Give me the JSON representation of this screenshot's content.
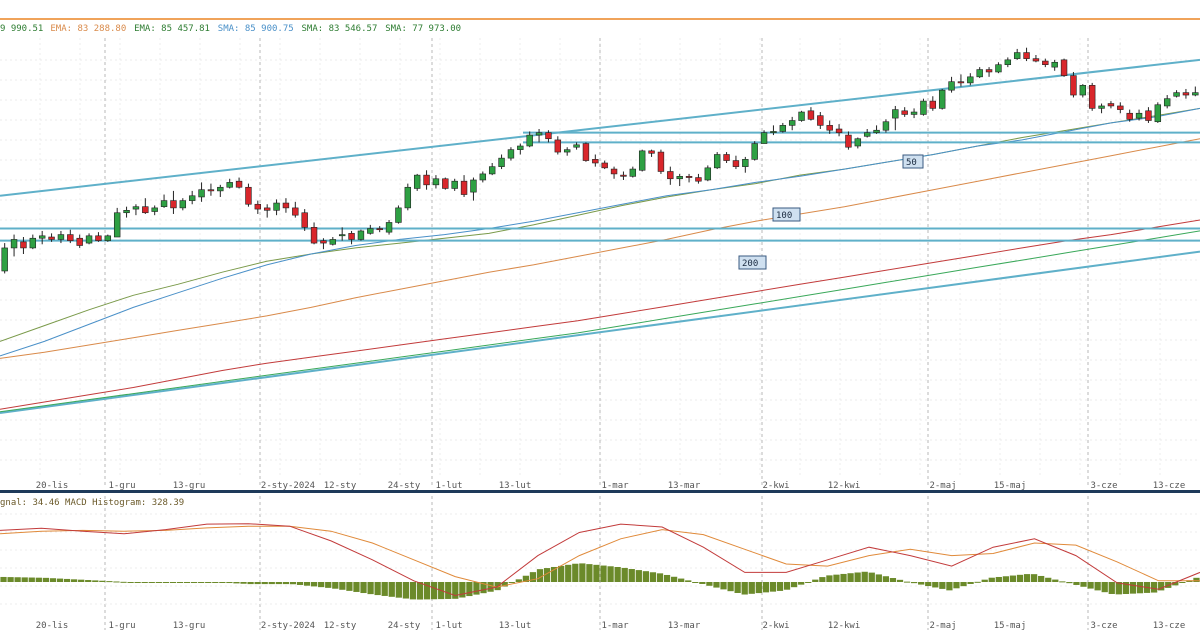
{
  "colors": {
    "up_candle": "#2ea043",
    "down_candle": "#d9262b",
    "channel": "#5fb0c9",
    "sma50": "#7a9a4a",
    "ema50": "#4a90c8",
    "sma100": "#d98a4a",
    "sma200": "#c23b3b",
    "ema200": "#3aa85a",
    "macd_line": "#c23b3b",
    "signal_line": "#e08a3a",
    "histogram": "#6b8a2a",
    "grid": "#d8d8d8",
    "top_accent": "#f0a35a"
  },
  "price_panel": {
    "legend": [
      {
        "text": "9 990.51",
        "color": "#2e7d32"
      },
      {
        "text": "EMA: 83 288.80",
        "color": "#d98a4a"
      },
      {
        "text": "EMA: 85 457.81",
        "color": "#2e7d32"
      },
      {
        "text": "SMA: 85 900.75",
        "color": "#4a90c8"
      },
      {
        "text": "SMA: 83 546.57",
        "color": "#2e7d32"
      },
      {
        "text": "SMA: 77 973.00",
        "color": "#2e7d32"
      }
    ],
    "ma_labels": [
      "50",
      "100",
      "200"
    ]
  },
  "x_axis": {
    "labels": [
      "20-lis",
      "1-gru",
      "13-gru",
      "2-sty-2024",
      "12-sty",
      "24-sty",
      "1-lut",
      "13-lut",
      "1-mar",
      "13-mar",
      "2-kwi",
      "12-kwi",
      "2-maj",
      "15-maj",
      "3-cze",
      "13-cze"
    ]
  },
  "macd_panel": {
    "legend": "gnal: 34.46 MACD Histogram: 328.39"
  },
  "chart_data": [
    {
      "type": "candlestick",
      "candles": [
        {
          "o": 61.0,
          "h": 63.3,
          "l": 60.8,
          "c": 62.9
        },
        {
          "o": 62.9,
          "h": 64.0,
          "l": 62.2,
          "c": 63.6
        },
        {
          "o": 63.4,
          "h": 63.8,
          "l": 62.4,
          "c": 62.9
        },
        {
          "o": 62.9,
          "h": 64.0,
          "l": 62.8,
          "c": 63.7
        },
        {
          "o": 63.7,
          "h": 64.3,
          "l": 63.2,
          "c": 63.9
        },
        {
          "o": 63.8,
          "h": 64.1,
          "l": 63.4,
          "c": 63.6
        },
        {
          "o": 63.6,
          "h": 64.3,
          "l": 63.3,
          "c": 64.0
        },
        {
          "o": 64.0,
          "h": 64.4,
          "l": 63.3,
          "c": 63.5
        },
        {
          "o": 63.7,
          "h": 64.0,
          "l": 62.9,
          "c": 63.1
        },
        {
          "o": 63.3,
          "h": 64.1,
          "l": 63.2,
          "c": 63.9
        },
        {
          "o": 63.9,
          "h": 64.2,
          "l": 63.4,
          "c": 63.5
        },
        {
          "o": 63.5,
          "h": 64.0,
          "l": 63.4,
          "c": 63.9
        },
        {
          "o": 63.8,
          "h": 66.2,
          "l": 63.8,
          "c": 65.8
        },
        {
          "o": 65.8,
          "h": 66.3,
          "l": 65.4,
          "c": 66.0
        },
        {
          "o": 66.1,
          "h": 66.5,
          "l": 65.6,
          "c": 66.3
        },
        {
          "o": 66.3,
          "h": 67.0,
          "l": 65.7,
          "c": 65.8
        },
        {
          "o": 65.9,
          "h": 66.4,
          "l": 65.6,
          "c": 66.2
        },
        {
          "o": 66.3,
          "h": 67.3,
          "l": 66.2,
          "c": 66.8
        },
        {
          "o": 66.8,
          "h": 67.6,
          "l": 65.7,
          "c": 66.2
        },
        {
          "o": 66.2,
          "h": 67.0,
          "l": 66.0,
          "c": 66.8
        },
        {
          "o": 66.8,
          "h": 67.6,
          "l": 66.5,
          "c": 67.2
        },
        {
          "o": 67.1,
          "h": 68.3,
          "l": 66.7,
          "c": 67.7
        },
        {
          "o": 67.7,
          "h": 68.2,
          "l": 67.2,
          "c": 67.6
        },
        {
          "o": 67.6,
          "h": 68.1,
          "l": 67.1,
          "c": 67.9
        },
        {
          "o": 67.9,
          "h": 68.6,
          "l": 67.8,
          "c": 68.3
        },
        {
          "o": 68.4,
          "h": 68.7,
          "l": 67.8,
          "c": 67.9
        },
        {
          "o": 67.9,
          "h": 68.2,
          "l": 66.3,
          "c": 66.5
        },
        {
          "o": 66.5,
          "h": 66.8,
          "l": 65.7,
          "c": 66.1
        },
        {
          "o": 66.2,
          "h": 66.5,
          "l": 65.4,
          "c": 66.0
        },
        {
          "o": 66.0,
          "h": 66.9,
          "l": 65.6,
          "c": 66.6
        },
        {
          "o": 66.6,
          "h": 67.0,
          "l": 65.8,
          "c": 66.2
        },
        {
          "o": 66.2,
          "h": 66.7,
          "l": 65.4,
          "c": 65.6
        },
        {
          "o": 65.8,
          "h": 66.1,
          "l": 64.3,
          "c": 64.6
        },
        {
          "o": 64.6,
          "h": 65.0,
          "l": 63.2,
          "c": 63.3
        },
        {
          "o": 63.5,
          "h": 63.7,
          "l": 62.8,
          "c": 63.3
        },
        {
          "o": 63.2,
          "h": 63.8,
          "l": 63.1,
          "c": 63.6
        },
        {
          "o": 63.9,
          "h": 64.6,
          "l": 63.5,
          "c": 64.0
        },
        {
          "o": 64.1,
          "h": 64.3,
          "l": 63.2,
          "c": 63.6
        },
        {
          "o": 63.6,
          "h": 64.4,
          "l": 63.5,
          "c": 64.3
        },
        {
          "o": 64.1,
          "h": 64.8,
          "l": 64.0,
          "c": 64.5
        },
        {
          "o": 64.5,
          "h": 64.7,
          "l": 64.2,
          "c": 64.4
        },
        {
          "o": 64.2,
          "h": 65.2,
          "l": 64.0,
          "c": 65.0
        },
        {
          "o": 65.0,
          "h": 66.4,
          "l": 64.9,
          "c": 66.2
        },
        {
          "o": 66.2,
          "h": 68.2,
          "l": 66.0,
          "c": 67.9
        },
        {
          "o": 67.8,
          "h": 69.0,
          "l": 67.6,
          "c": 68.9
        },
        {
          "o": 68.9,
          "h": 69.3,
          "l": 67.7,
          "c": 68.1
        },
        {
          "o": 68.1,
          "h": 68.9,
          "l": 67.8,
          "c": 68.6
        },
        {
          "o": 68.6,
          "h": 68.7,
          "l": 67.7,
          "c": 67.8
        },
        {
          "o": 67.8,
          "h": 68.6,
          "l": 67.6,
          "c": 68.4
        },
        {
          "o": 68.4,
          "h": 68.9,
          "l": 67.1,
          "c": 67.3
        },
        {
          "o": 67.5,
          "h": 68.7,
          "l": 66.8,
          "c": 68.5
        },
        {
          "o": 68.5,
          "h": 69.2,
          "l": 68.3,
          "c": 69.0
        },
        {
          "o": 69.0,
          "h": 69.9,
          "l": 68.9,
          "c": 69.6
        },
        {
          "o": 69.6,
          "h": 70.6,
          "l": 69.4,
          "c": 70.3
        },
        {
          "o": 70.3,
          "h": 71.2,
          "l": 70.1,
          "c": 71.0
        },
        {
          "o": 71.0,
          "h": 71.5,
          "l": 70.6,
          "c": 71.3
        },
        {
          "o": 71.3,
          "h": 72.5,
          "l": 71.2,
          "c": 72.2
        },
        {
          "o": 72.2,
          "h": 72.7,
          "l": 71.6,
          "c": 72.4
        },
        {
          "o": 72.4,
          "h": 72.6,
          "l": 71.6,
          "c": 71.9
        },
        {
          "o": 71.8,
          "h": 72.1,
          "l": 70.6,
          "c": 70.8
        },
        {
          "o": 70.8,
          "h": 71.2,
          "l": 70.5,
          "c": 71.0
        },
        {
          "o": 71.2,
          "h": 71.6,
          "l": 71.0,
          "c": 71.4
        },
        {
          "o": 71.5,
          "h": 71.6,
          "l": 70.0,
          "c": 70.1
        },
        {
          "o": 70.2,
          "h": 70.6,
          "l": 69.6,
          "c": 69.9
        },
        {
          "o": 69.9,
          "h": 70.1,
          "l": 69.4,
          "c": 69.5
        },
        {
          "o": 69.4,
          "h": 69.6,
          "l": 68.6,
          "c": 69.0
        },
        {
          "o": 68.9,
          "h": 69.2,
          "l": 68.5,
          "c": 68.8
        },
        {
          "o": 68.8,
          "h": 69.6,
          "l": 68.7,
          "c": 69.4
        },
        {
          "o": 69.3,
          "h": 71.0,
          "l": 69.2,
          "c": 70.9
        },
        {
          "o": 70.9,
          "h": 71.0,
          "l": 70.4,
          "c": 70.7
        },
        {
          "o": 70.8,
          "h": 71.0,
          "l": 69.0,
          "c": 69.2
        },
        {
          "o": 69.2,
          "h": 69.6,
          "l": 68.1,
          "c": 68.6
        },
        {
          "o": 68.6,
          "h": 69.0,
          "l": 68.0,
          "c": 68.8
        },
        {
          "o": 68.8,
          "h": 69.0,
          "l": 68.3,
          "c": 68.7
        },
        {
          "o": 68.7,
          "h": 69.0,
          "l": 68.2,
          "c": 68.4
        },
        {
          "o": 68.5,
          "h": 69.7,
          "l": 68.4,
          "c": 69.5
        },
        {
          "o": 69.5,
          "h": 70.8,
          "l": 69.4,
          "c": 70.6
        },
        {
          "o": 70.6,
          "h": 70.8,
          "l": 69.9,
          "c": 70.1
        },
        {
          "o": 70.1,
          "h": 70.5,
          "l": 69.4,
          "c": 69.6
        },
        {
          "o": 69.6,
          "h": 70.4,
          "l": 69.1,
          "c": 70.2
        },
        {
          "o": 70.2,
          "h": 71.7,
          "l": 70.1,
          "c": 71.5
        },
        {
          "o": 71.5,
          "h": 72.6,
          "l": 71.5,
          "c": 72.4
        },
        {
          "o": 72.4,
          "h": 73.0,
          "l": 72.2,
          "c": 72.5
        },
        {
          "o": 72.5,
          "h": 73.2,
          "l": 72.4,
          "c": 73.0
        },
        {
          "o": 73.0,
          "h": 73.7,
          "l": 72.6,
          "c": 73.4
        },
        {
          "o": 73.4,
          "h": 74.2,
          "l": 73.3,
          "c": 74.1
        },
        {
          "o": 74.2,
          "h": 74.5,
          "l": 73.4,
          "c": 73.5
        },
        {
          "o": 73.8,
          "h": 74.1,
          "l": 72.7,
          "c": 73.0
        },
        {
          "o": 73.0,
          "h": 73.4,
          "l": 72.3,
          "c": 72.6
        },
        {
          "o": 72.7,
          "h": 73.1,
          "l": 72.1,
          "c": 72.4
        },
        {
          "o": 72.2,
          "h": 72.5,
          "l": 71.0,
          "c": 71.2
        },
        {
          "o": 71.3,
          "h": 72.0,
          "l": 71.1,
          "c": 71.9
        },
        {
          "o": 72.1,
          "h": 72.7,
          "l": 72.0,
          "c": 72.4
        },
        {
          "o": 72.4,
          "h": 73.0,
          "l": 72.3,
          "c": 72.6
        },
        {
          "o": 72.6,
          "h": 73.5,
          "l": 72.4,
          "c": 73.3
        },
        {
          "o": 73.6,
          "h": 74.6,
          "l": 72.6,
          "c": 74.3
        },
        {
          "o": 74.2,
          "h": 74.5,
          "l": 73.7,
          "c": 73.9
        },
        {
          "o": 73.9,
          "h": 74.4,
          "l": 73.6,
          "c": 74.1
        },
        {
          "o": 73.9,
          "h": 75.2,
          "l": 73.8,
          "c": 75.0
        },
        {
          "o": 75.0,
          "h": 75.4,
          "l": 74.2,
          "c": 74.4
        },
        {
          "o": 74.4,
          "h": 76.0,
          "l": 74.3,
          "c": 75.9
        },
        {
          "o": 75.9,
          "h": 77.0,
          "l": 75.7,
          "c": 76.6
        },
        {
          "o": 76.6,
          "h": 77.2,
          "l": 76.2,
          "c": 76.5
        },
        {
          "o": 76.5,
          "h": 77.3,
          "l": 76.3,
          "c": 77.0
        },
        {
          "o": 77.0,
          "h": 77.8,
          "l": 76.9,
          "c": 77.6
        },
        {
          "o": 77.6,
          "h": 77.8,
          "l": 77.0,
          "c": 77.4
        },
        {
          "o": 77.4,
          "h": 78.2,
          "l": 77.3,
          "c": 78.0
        },
        {
          "o": 78.0,
          "h": 78.6,
          "l": 77.8,
          "c": 78.4
        },
        {
          "o": 78.5,
          "h": 79.3,
          "l": 78.4,
          "c": 79.0
        },
        {
          "o": 79.0,
          "h": 79.4,
          "l": 78.3,
          "c": 78.5
        },
        {
          "o": 78.5,
          "h": 78.8,
          "l": 78.2,
          "c": 78.3
        },
        {
          "o": 78.3,
          "h": 78.5,
          "l": 77.8,
          "c": 78.0
        },
        {
          "o": 77.8,
          "h": 78.4,
          "l": 77.5,
          "c": 78.2
        },
        {
          "o": 78.4,
          "h": 78.5,
          "l": 77.0,
          "c": 77.1
        },
        {
          "o": 77.1,
          "h": 77.4,
          "l": 75.3,
          "c": 75.5
        },
        {
          "o": 75.5,
          "h": 76.4,
          "l": 75.3,
          "c": 76.3
        },
        {
          "o": 76.3,
          "h": 76.5,
          "l": 74.2,
          "c": 74.4
        },
        {
          "o": 74.4,
          "h": 74.8,
          "l": 74.0,
          "c": 74.6
        },
        {
          "o": 74.8,
          "h": 75.0,
          "l": 74.4,
          "c": 74.6
        },
        {
          "o": 74.6,
          "h": 74.9,
          "l": 74.0,
          "c": 74.3
        },
        {
          "o": 74.0,
          "h": 74.3,
          "l": 73.3,
          "c": 73.5
        },
        {
          "o": 73.6,
          "h": 74.3,
          "l": 73.4,
          "c": 74.0
        },
        {
          "o": 74.2,
          "h": 74.5,
          "l": 73.2,
          "c": 73.4
        },
        {
          "o": 73.3,
          "h": 74.9,
          "l": 73.2,
          "c": 74.7
        },
        {
          "o": 74.6,
          "h": 75.5,
          "l": 74.4,
          "c": 75.2
        },
        {
          "o": 75.4,
          "h": 75.9,
          "l": 75.3,
          "c": 75.7
        },
        {
          "o": 75.7,
          "h": 76.0,
          "l": 75.2,
          "c": 75.5
        },
        {
          "o": 75.5,
          "h": 76.2,
          "l": 75.4,
          "c": 75.7
        }
      ],
      "moving_averages": [
        {
          "label": "SMA 50",
          "values": [
            55.2,
            56.5,
            57.8,
            59.0,
            59.9,
            60.9,
            61.8,
            62.4,
            62.9,
            63.3,
            63.7,
            64.1,
            64.8,
            65.6,
            66.4,
            67.1,
            67.7,
            68.2,
            68.9,
            69.4,
            70.0,
            70.6,
            71.3,
            72.0,
            72.6,
            73.2,
            73.8,
            74.4
          ]
        },
        {
          "label": "EMA 50",
          "values": [
            54.0,
            55.2,
            56.6,
            58.0,
            59.2,
            60.4,
            61.5,
            62.4,
            63.1,
            63.6,
            64.0,
            64.5,
            65.1,
            65.8,
            66.5,
            67.2,
            67.7,
            68.3,
            68.8,
            69.4,
            70.0,
            70.6,
            71.3,
            71.8,
            72.5,
            73.2,
            73.7,
            74.4
          ]
        },
        {
          "label": "SMA 100",
          "values": [
            53.8,
            54.3,
            54.9,
            55.5,
            56.1,
            56.7,
            57.3,
            58.0,
            58.8,
            59.5,
            60.2,
            60.9,
            61.5,
            62.2,
            62.9,
            63.6,
            64.4,
            65.1,
            65.7,
            66.3,
            67.0,
            67.7,
            68.4,
            69.1,
            69.8,
            70.5,
            71.2,
            71.9
          ]
        },
        {
          "label": "SMA 200",
          "values": [
            49.6,
            50.2,
            50.8,
            51.4,
            52.1,
            52.8,
            53.4,
            53.9,
            54.4,
            54.9,
            55.4,
            55.9,
            56.4,
            56.9,
            57.5,
            58.1,
            58.7,
            59.3,
            59.9,
            60.5,
            61.1,
            61.7,
            62.3,
            62.9,
            63.5,
            64.0,
            64.6,
            65.2
          ]
        },
        {
          "label": "EMA 200",
          "values": [
            49.4,
            49.9,
            50.4,
            50.9,
            51.4,
            51.9,
            52.4,
            52.9,
            53.4,
            53.9,
            54.4,
            54.9,
            55.4,
            55.9,
            56.5,
            57.1,
            57.7,
            58.3,
            58.9,
            59.5,
            60.1,
            60.7,
            61.3,
            61.9,
            62.5,
            63.1,
            63.7,
            64.3
          ]
        }
      ],
      "horizontal_levels": [
        72.4,
        71.6,
        64.5,
        63.5
      ],
      "trendlines": [
        {
          "x0": 0.0,
          "y0": 67.2,
          "x1": 1.0,
          "y1": 78.4
        },
        {
          "x0": 0.0,
          "y0": 49.3,
          "x1": 1.0,
          "y1": 62.6
        }
      ],
      "ylim": [
        44.6,
        80.2
      ]
    },
    {
      "type": "macd",
      "title": "gnal: 34.46 MACD Histogram: 328.39",
      "macd": [
        0.8,
        0.85,
        0.78,
        0.72,
        0.82,
        0.95,
        0.96,
        0.9,
        0.55,
        0.1,
        -0.4,
        -0.75,
        -0.55,
        0.2,
        0.75,
        0.95,
        0.88,
        0.4,
        -0.2,
        -0.2,
        0.1,
        0.4,
        0.2,
        -0.05,
        0.4,
        0.6,
        0.2,
        -0.45,
        -0.6,
        -0.2
      ],
      "signal": [
        0.72,
        0.78,
        0.8,
        0.78,
        0.8,
        0.86,
        0.9,
        0.9,
        0.78,
        0.5,
        0.1,
        -0.3,
        -0.55,
        -0.35,
        0.2,
        0.6,
        0.82,
        0.7,
        0.35,
        0.0,
        -0.05,
        0.2,
        0.35,
        0.2,
        0.25,
        0.5,
        0.45,
        0.05,
        -0.4,
        -0.4
      ],
      "histogram": [
        0.12,
        0.1,
        0.05,
        0.0,
        0.0,
        0.0,
        -0.05,
        -0.05,
        -0.15,
        -0.3,
        -0.42,
        -0.4,
        -0.2,
        0.3,
        0.45,
        0.35,
        0.2,
        -0.05,
        -0.3,
        -0.2,
        0.15,
        0.25,
        0.0,
        -0.2,
        0.1,
        0.2,
        -0.05,
        -0.3,
        -0.25,
        0.1
      ],
      "ylim": [
        -1.0,
        1.0
      ]
    }
  ]
}
